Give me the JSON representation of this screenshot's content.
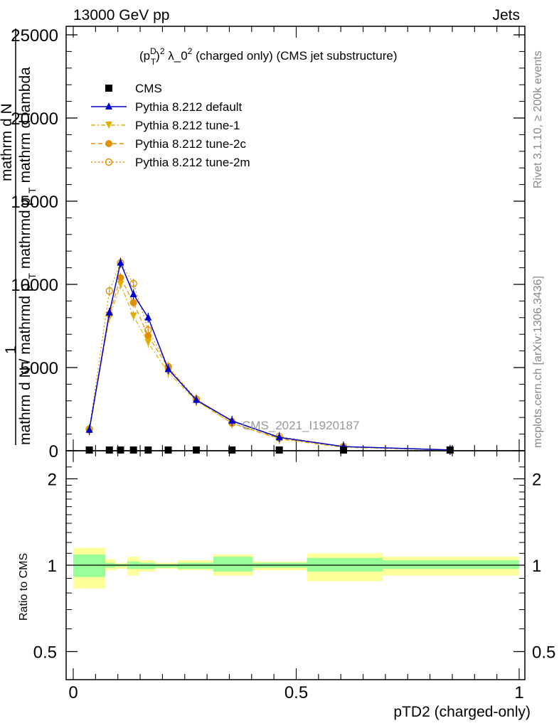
{
  "header": {
    "left": "13000 GeV pp",
    "right": "Jets"
  },
  "side": {
    "rivet": "Rivet 3.1.10, ≥ 200k events",
    "mcplots": "mcplots.cern.ch [arXiv:1306.3436]"
  },
  "title_parts": {
    "p": "(p",
    "sup_d": "D",
    "sub_t": "T",
    "close": ")",
    "sup2": "2",
    "lambda": "λ_0",
    "sup2b": "2",
    "rest": "(charged only) (CMS jet substructure)"
  },
  "watermark": "CMS_2021_I1920187",
  "ylabel_top": {
    "one": "1",
    "num1": "mathrm d",
    "num2": "N",
    "den_dn": "mathrm d",
    "den_n": "N",
    "den_mid": "/ mathrmd p",
    "den_t": "T",
    "den_rest": "mathrmd p",
    "den_t2": "T",
    "den_lambda": "mathrm d lambda"
  },
  "ylabel_bottom": "Ratio to CMS",
  "xlabel": "pTD2 (charged-only)",
  "legend": [
    {
      "label": "CMS",
      "color": "#000000",
      "marker": "square",
      "dash": "none"
    },
    {
      "label": "Pythia 8.212 default",
      "color": "#0000cc",
      "marker": "triangle-up",
      "dash": "solid"
    },
    {
      "label": "Pythia 8.212 tune-1",
      "color": "#e0b000",
      "marker": "triangle-down",
      "dash": "dashdot"
    },
    {
      "label": "Pythia 8.212 tune-2c",
      "color": "#e09000",
      "marker": "circle",
      "dash": "dashed"
    },
    {
      "label": "Pythia 8.212 tune-2m",
      "color": "#e09000",
      "marker": "circle-open",
      "dash": "dotted"
    }
  ],
  "chart_data": {
    "type": "line",
    "title": "(pT^D)^2 λ_0^2 (charged only) (CMS jet substructure)",
    "xlabel": "pTD2 (charged-only)",
    "ylabel": "1/N dN/dpT dpT dlambda",
    "xlim": [
      0,
      1
    ],
    "ylim": [
      0,
      25000
    ],
    "x_ticks": [
      "0",
      "0.5",
      "1"
    ],
    "y_ticks": [
      "0",
      "5000",
      "10000",
      "15000",
      "20000",
      "25000"
    ],
    "bins": [
      [
        0.0,
        0.072
      ],
      [
        0.072,
        0.094
      ],
      [
        0.094,
        0.121
      ],
      [
        0.121,
        0.147
      ],
      [
        0.147,
        0.184
      ],
      [
        0.184,
        0.234
      ],
      [
        0.234,
        0.314
      ],
      [
        0.314,
        0.402
      ],
      [
        0.402,
        0.524
      ],
      [
        0.524,
        0.694
      ],
      [
        0.694,
        1.0
      ]
    ],
    "x": [
      0.036,
      0.081,
      0.106,
      0.135,
      0.168,
      0.213,
      0.276,
      0.356,
      0.462,
      0.606,
      0.845
    ],
    "series": [
      {
        "name": "CMS",
        "values": [
          0,
          0,
          0,
          0,
          0,
          0,
          0,
          0,
          0,
          0,
          0
        ]
      },
      {
        "name": "Pythia 8.212 default",
        "values": [
          1250,
          8300,
          11300,
          9400,
          8000,
          4900,
          3050,
          1800,
          800,
          250,
          50
        ]
      },
      {
        "name": "Pythia 8.212 tune-1",
        "values": [
          1200,
          8000,
          10000,
          8100,
          6500,
          4700,
          3000,
          1650,
          700,
          200,
          40
        ]
      },
      {
        "name": "Pythia 8.212 tune-2c",
        "values": [
          1250,
          8200,
          10400,
          8900,
          6900,
          5000,
          3050,
          1650,
          750,
          250,
          50
        ]
      },
      {
        "name": "Pythia 8.212 tune-2m",
        "values": [
          1300,
          9600,
          11300,
          10050,
          7250,
          5050,
          3100,
          1750,
          850,
          250,
          50
        ]
      }
    ],
    "ratio": {
      "ylabel": "Ratio to CMS",
      "ylim": [
        0.4,
        2.4
      ],
      "y_ticks": [
        "0.5",
        "1",
        "2"
      ],
      "band_inner": [
        [
          0.91,
          1.09
        ],
        [
          0.98,
          1.02
        ],
        [
          0.99,
          1.01
        ],
        [
          0.97,
          1.03
        ],
        [
          0.97,
          1.02
        ],
        [
          0.98,
          1.01
        ],
        [
          0.97,
          1.02
        ],
        [
          0.95,
          1.07
        ],
        [
          0.98,
          1.02
        ],
        [
          0.95,
          1.06
        ],
        [
          0.97,
          1.04
        ]
      ],
      "band_outer": [
        [
          0.83,
          1.15
        ],
        [
          0.96,
          1.05
        ],
        [
          0.97,
          1.02
        ],
        [
          0.92,
          1.07
        ],
        [
          0.95,
          1.04
        ],
        [
          0.97,
          1.02
        ],
        [
          0.96,
          1.04
        ],
        [
          0.92,
          1.09
        ],
        [
          0.96,
          1.03
        ],
        [
          0.88,
          1.1
        ],
        [
          0.92,
          1.07
        ]
      ]
    }
  }
}
